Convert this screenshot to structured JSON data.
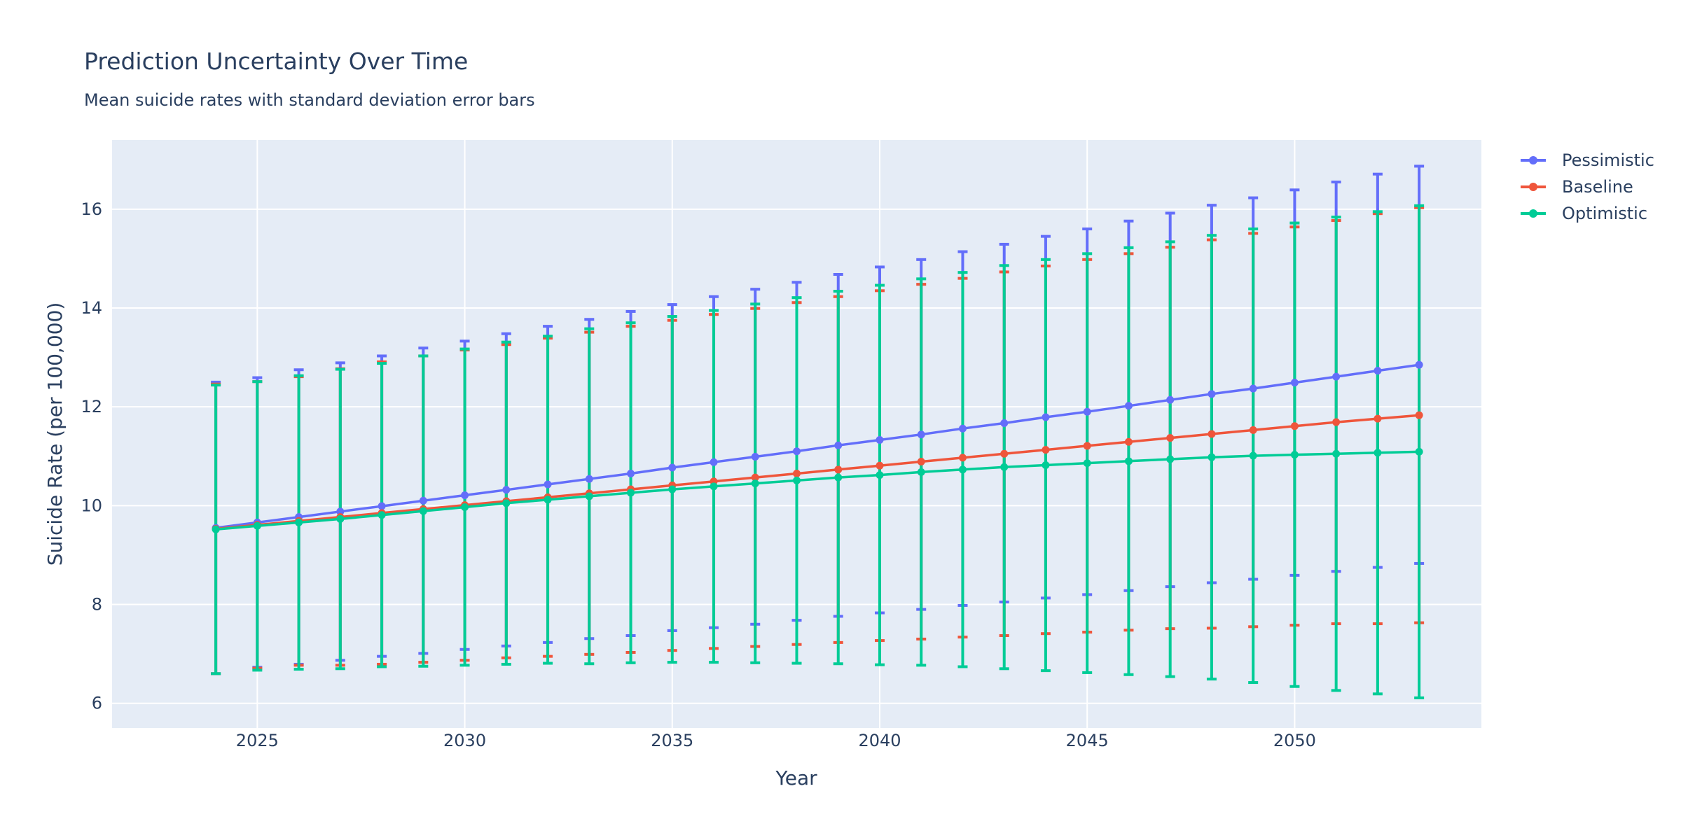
{
  "chart_data": {
    "type": "line",
    "title": "Prediction Uncertainty Over Time",
    "subtitle": "Mean suicide rates with standard deviation error bars",
    "xlabel": "Year",
    "ylabel": "Suicide Rate (per 100,000)",
    "xlim": [
      2021.5,
      2054.5
    ],
    "ylim": [
      5.5,
      17.4
    ],
    "x_ticks": [
      2025,
      2030,
      2035,
      2040,
      2045,
      2050
    ],
    "y_ticks": [
      6,
      8,
      10,
      12,
      14,
      16
    ],
    "grid": true,
    "legend_position": "top-right",
    "x": [
      2024,
      2025,
      2026,
      2027,
      2028,
      2029,
      2030,
      2031,
      2032,
      2033,
      2034,
      2035,
      2036,
      2037,
      2038,
      2039,
      2040,
      2041,
      2042,
      2043,
      2044,
      2045,
      2046,
      2047,
      2048,
      2049,
      2050,
      2051,
      2052,
      2053
    ],
    "series": [
      {
        "name": "Pessimistic",
        "color": "#636efa",
        "values": [
          9.55,
          9.66,
          9.77,
          9.88,
          9.99,
          10.1,
          10.21,
          10.32,
          10.43,
          10.54,
          10.65,
          10.77,
          10.88,
          10.99,
          11.1,
          11.22,
          11.33,
          11.44,
          11.56,
          11.67,
          11.79,
          11.9,
          12.02,
          12.14,
          12.26,
          12.37,
          12.49,
          12.61,
          12.73,
          12.85
        ],
        "error": [
          2.95,
          2.93,
          2.98,
          3.01,
          3.04,
          3.09,
          3.12,
          3.16,
          3.2,
          3.23,
          3.28,
          3.3,
          3.35,
          3.39,
          3.42,
          3.46,
          3.5,
          3.54,
          3.58,
          3.62,
          3.66,
          3.7,
          3.74,
          3.78,
          3.82,
          3.86,
          3.9,
          3.94,
          3.98,
          4.02
        ]
      },
      {
        "name": "Baseline",
        "color": "#ef553b",
        "values": [
          9.53,
          9.61,
          9.69,
          9.77,
          9.85,
          9.93,
          10.01,
          10.09,
          10.17,
          10.25,
          10.33,
          10.41,
          10.49,
          10.57,
          10.65,
          10.73,
          10.81,
          10.89,
          10.97,
          11.05,
          11.13,
          11.21,
          11.29,
          11.37,
          11.45,
          11.53,
          11.61,
          11.69,
          11.76,
          11.83
        ],
        "error": [
          2.93,
          2.9,
          2.92,
          3.0,
          3.06,
          3.1,
          3.14,
          3.17,
          3.22,
          3.26,
          3.3,
          3.34,
          3.38,
          3.42,
          3.46,
          3.5,
          3.54,
          3.59,
          3.63,
          3.68,
          3.72,
          3.77,
          3.81,
          3.86,
          3.93,
          3.98,
          4.03,
          4.08,
          4.15,
          4.2
        ]
      },
      {
        "name": "Optimistic",
        "color": "#00cc96",
        "values": [
          9.52,
          9.59,
          9.66,
          9.73,
          9.81,
          9.89,
          9.97,
          10.05,
          10.12,
          10.19,
          10.26,
          10.33,
          10.39,
          10.45,
          10.51,
          10.57,
          10.62,
          10.68,
          10.73,
          10.78,
          10.82,
          10.86,
          10.9,
          10.94,
          10.98,
          11.01,
          11.03,
          11.05,
          11.07,
          11.09
        ],
        "error": [
          2.92,
          2.92,
          2.97,
          3.03,
          3.07,
          3.14,
          3.2,
          3.26,
          3.31,
          3.39,
          3.44,
          3.5,
          3.56,
          3.63,
          3.7,
          3.77,
          3.84,
          3.91,
          3.99,
          4.08,
          4.16,
          4.24,
          4.32,
          4.4,
          4.49,
          4.59,
          4.69,
          4.79,
          4.88,
          4.98
        ]
      }
    ]
  }
}
